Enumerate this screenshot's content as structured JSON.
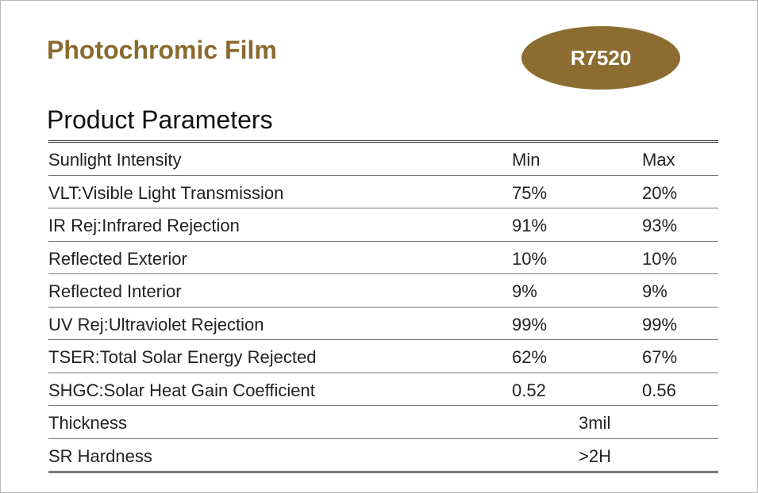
{
  "header": {
    "title": "Photochromic Film",
    "badge": "R7520"
  },
  "section": "Product Parameters",
  "table": {
    "columns": [
      "Sunlight Intensity",
      "Min",
      "Max"
    ],
    "rows": [
      [
        "VLT:Visible Light Transmission",
        "75%",
        "20%"
      ],
      [
        "IR Rej:Infrared Rejection",
        "91%",
        "93%"
      ],
      [
        "Reflected Exterior",
        "10%",
        "10%"
      ],
      [
        "Reflected Interior",
        "9%",
        "9%"
      ],
      [
        "UV Rej:Ultraviolet Rejection",
        "99%",
        "99%"
      ],
      [
        "TSER:Total Solar Energy Rejected",
        "62%",
        "67%"
      ],
      [
        "SHGC:Solar Heat Gain Coefficient",
        "0.52",
        "0.56"
      ]
    ],
    "merged_rows": [
      [
        "Thickness",
        "3mil"
      ],
      [
        "SR Hardness",
        ">2H"
      ]
    ]
  }
}
